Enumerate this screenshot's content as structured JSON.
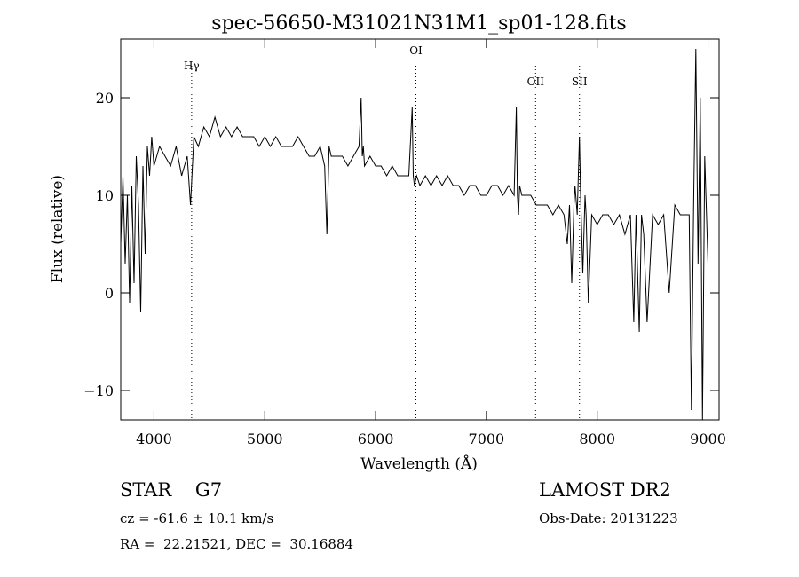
{
  "chart_data": {
    "type": "line",
    "title": "spec-56650-M31021N31M1_sp01-128.fits",
    "xlabel": "Wavelength (Å)",
    "ylabel": "Flux (relative)",
    "xlim": [
      3700,
      9100
    ],
    "ylim": [
      -13,
      26
    ],
    "x_ticks": [
      4000,
      5000,
      6000,
      7000,
      8000,
      9000
    ],
    "y_ticks": [
      -10,
      0,
      10,
      20
    ],
    "grid": false,
    "lines": [
      {
        "label": "Hγ",
        "x": 4340
      },
      {
        "label": "OI",
        "x": 6364
      },
      {
        "label": "OII",
        "x": 7444
      },
      {
        "label": "SII",
        "x": 7840
      }
    ],
    "series": [
      {
        "x": [
          3700,
          3720,
          3740,
          3760,
          3780,
          3800,
          3820,
          3840,
          3860,
          3880,
          3900,
          3920,
          3940,
          3960,
          3980,
          4000,
          4050,
          4100,
          4150,
          4200,
          4250,
          4300,
          4330,
          4360,
          4400,
          4450,
          4500,
          4550,
          4600,
          4650,
          4700,
          4750,
          4800,
          4850,
          4900,
          4950,
          5000,
          5050,
          5100,
          5150,
          5200,
          5250,
          5300,
          5350,
          5400,
          5450,
          5500,
          5540,
          5560,
          5580,
          5600,
          5650,
          5700,
          5750,
          5800,
          5850,
          5870,
          5880,
          5890,
          5900,
          5950,
          6000,
          6050,
          6100,
          6150,
          6200,
          6250,
          6300,
          6330,
          6340,
          6350,
          6370,
          6400,
          6450,
          6500,
          6550,
          6600,
          6650,
          6700,
          6750,
          6800,
          6850,
          6900,
          6950,
          7000,
          7050,
          7100,
          7150,
          7200,
          7250,
          7270,
          7280,
          7290,
          7300,
          7320,
          7350,
          7400,
          7450,
          7500,
          7550,
          7600,
          7650,
          7700,
          7730,
          7750,
          7770,
          7790,
          7800,
          7820,
          7840,
          7850,
          7870,
          7890,
          7900,
          7920,
          7950,
          8000,
          8050,
          8100,
          8150,
          8200,
          8250,
          8300,
          8330,
          8350,
          8380,
          8400,
          8420,
          8450,
          8500,
          8550,
          8600,
          8650,
          8700,
          8750,
          8800,
          8830,
          8850,
          8870,
          8890,
          8910,
          8930,
          8950,
          8970,
          9000
        ],
        "values": [
          5,
          12,
          3,
          10,
          -1,
          11,
          1,
          14,
          9,
          -2,
          13,
          4,
          15,
          12,
          16,
          13,
          15,
          14,
          13,
          15,
          12,
          14,
          9,
          16,
          15,
          17,
          16,
          18,
          16,
          17,
          16,
          17,
          16,
          16,
          16,
          15,
          16,
          15,
          16,
          15,
          15,
          15,
          16,
          15,
          14,
          14,
          15,
          13,
          6,
          15,
          14,
          14,
          14,
          13,
          14,
          15,
          20,
          14,
          15,
          13,
          14,
          13,
          13,
          12,
          13,
          12,
          12,
          12,
          19,
          12,
          11,
          12,
          11,
          12,
          11,
          12,
          11,
          12,
          11,
          11,
          10,
          11,
          11,
          10,
          10,
          11,
          11,
          10,
          11,
          10,
          19,
          10,
          8,
          11,
          10,
          10,
          10,
          9,
          9,
          9,
          8,
          9,
          8,
          5,
          9,
          1,
          9,
          11,
          8,
          16,
          10,
          2,
          10,
          8,
          -1,
          8,
          7,
          8,
          8,
          7,
          8,
          6,
          8,
          -3,
          8,
          -4,
          8,
          6,
          -3,
          8,
          7,
          8,
          0,
          9,
          8,
          8,
          8,
          -12,
          9,
          25,
          3,
          20,
          -13,
          14,
          3
        ]
      }
    ]
  },
  "footer": {
    "object": "STAR    G7",
    "cz": "cz = -61.6 ± 10.1 km/s",
    "coords": "RA =  22.21521, DEC =  30.16884",
    "survey": "LAMOST DR2",
    "obs_date": "Obs-Date: 20131223"
  }
}
